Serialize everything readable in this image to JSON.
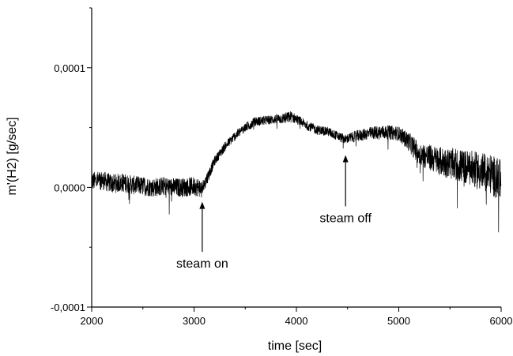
{
  "chart_data": {
    "type": "line",
    "title": "",
    "xlabel": "time [sec]",
    "ylabel": "m'(H2) [g/sec]",
    "xlim": [
      2000,
      6000
    ],
    "ylim": [
      -0.0001,
      0.00015
    ],
    "x_ticks": [
      2000,
      3000,
      4000,
      5000,
      6000
    ],
    "x_tick_labels": [
      "2000",
      "3000",
      "4000",
      "5000",
      "6000"
    ],
    "y_ticks": [
      -0.0001,
      0.0,
      0.0001
    ],
    "y_tick_labels": [
      "-0,0001",
      "0,0000",
      "0,0001"
    ],
    "grid": false,
    "line_color": "#000000",
    "series": [
      {
        "x": [
          2000,
          2100,
          2200,
          2300,
          2400,
          2500,
          2600,
          2700,
          2800,
          2900,
          3000,
          3050,
          3080,
          3100,
          3150,
          3200,
          3300,
          3400,
          3500,
          3600,
          3700,
          3800,
          3900,
          3950,
          4000,
          4100,
          4200,
          4300,
          4400,
          4480,
          4500,
          4600,
          4700,
          4800,
          4900,
          5000,
          5100,
          5200,
          5300,
          5400,
          5500,
          5600,
          5700,
          5800,
          5900,
          6000
        ],
        "y": [
          5e-06,
          6e-06,
          3e-06,
          4e-06,
          2e-06,
          1e-06,
          0.0,
          1e-06,
          0.0,
          0.0,
          1e-06,
          0.0,
          -2e-06,
          3e-06,
          1.2e-05,
          2.2e-05,
          3.4e-05,
          4.3e-05,
          5e-05,
          5.5e-05,
          5.6e-05,
          5.7e-05,
          5.8e-05,
          5.9e-05,
          5.7e-05,
          5.2e-05,
          4.8e-05,
          4.7e-05,
          4.3e-05,
          4e-05,
          4.1e-05,
          4.3e-05,
          4.5e-05,
          4.6e-05,
          4.6e-05,
          4.5e-05,
          3.8e-05,
          2.8e-05,
          2.5e-05,
          2.2e-05,
          2e-05,
          1.8e-05,
          1.6e-05,
          1.3e-05,
          1.1e-05,
          5e-06
        ],
        "noise_amplitude": [
          8e-06,
          8e-06,
          8e-06,
          8e-06,
          8e-06,
          8e-06,
          8e-06,
          8e-06,
          8e-06,
          8e-06,
          8e-06,
          8e-06,
          8e-06,
          6e-06,
          5e-06,
          4e-06,
          4e-06,
          4e-06,
          4e-06,
          4e-06,
          4e-06,
          4e-06,
          5e-06,
          5e-06,
          4e-06,
          4e-06,
          4e-06,
          4e-06,
          4e-06,
          4e-06,
          4e-06,
          5e-06,
          5e-06,
          6e-06,
          6e-06,
          6e-06,
          8e-06,
          1e-05,
          1.1e-05,
          1.2e-05,
          1.3e-05,
          1.4e-05,
          1.5e-05,
          1.6e-05,
          1.7e-05,
          1.8e-05
        ]
      }
    ],
    "annotations": [
      {
        "text": "steam on",
        "x": 3080,
        "y_tip": -1.2e-05,
        "y_text": -6.7e-05
      },
      {
        "text": "steam off",
        "x": 4480,
        "y_tip": 2.7e-05,
        "y_text": -2.9e-05
      }
    ]
  }
}
